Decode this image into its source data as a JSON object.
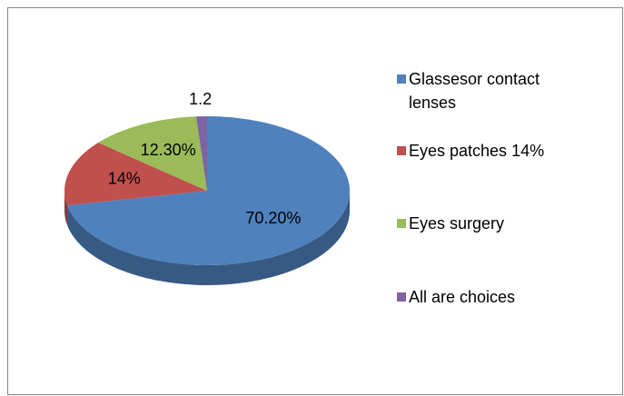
{
  "chart_data": {
    "type": "pie",
    "categories": [
      "Glassesor contact lenses",
      "Eyes patches 14%",
      "Eyes surgery",
      "All are choices"
    ],
    "values": [
      70.2,
      14,
      12.3,
      1.2
    ],
    "value_labels": [
      "70.20%",
      "14%",
      "12.30%",
      "1.2"
    ],
    "colors": [
      "#4f81bd",
      "#c0504d",
      "#9bbb59",
      "#8064a2"
    ],
    "legend": "right"
  }
}
